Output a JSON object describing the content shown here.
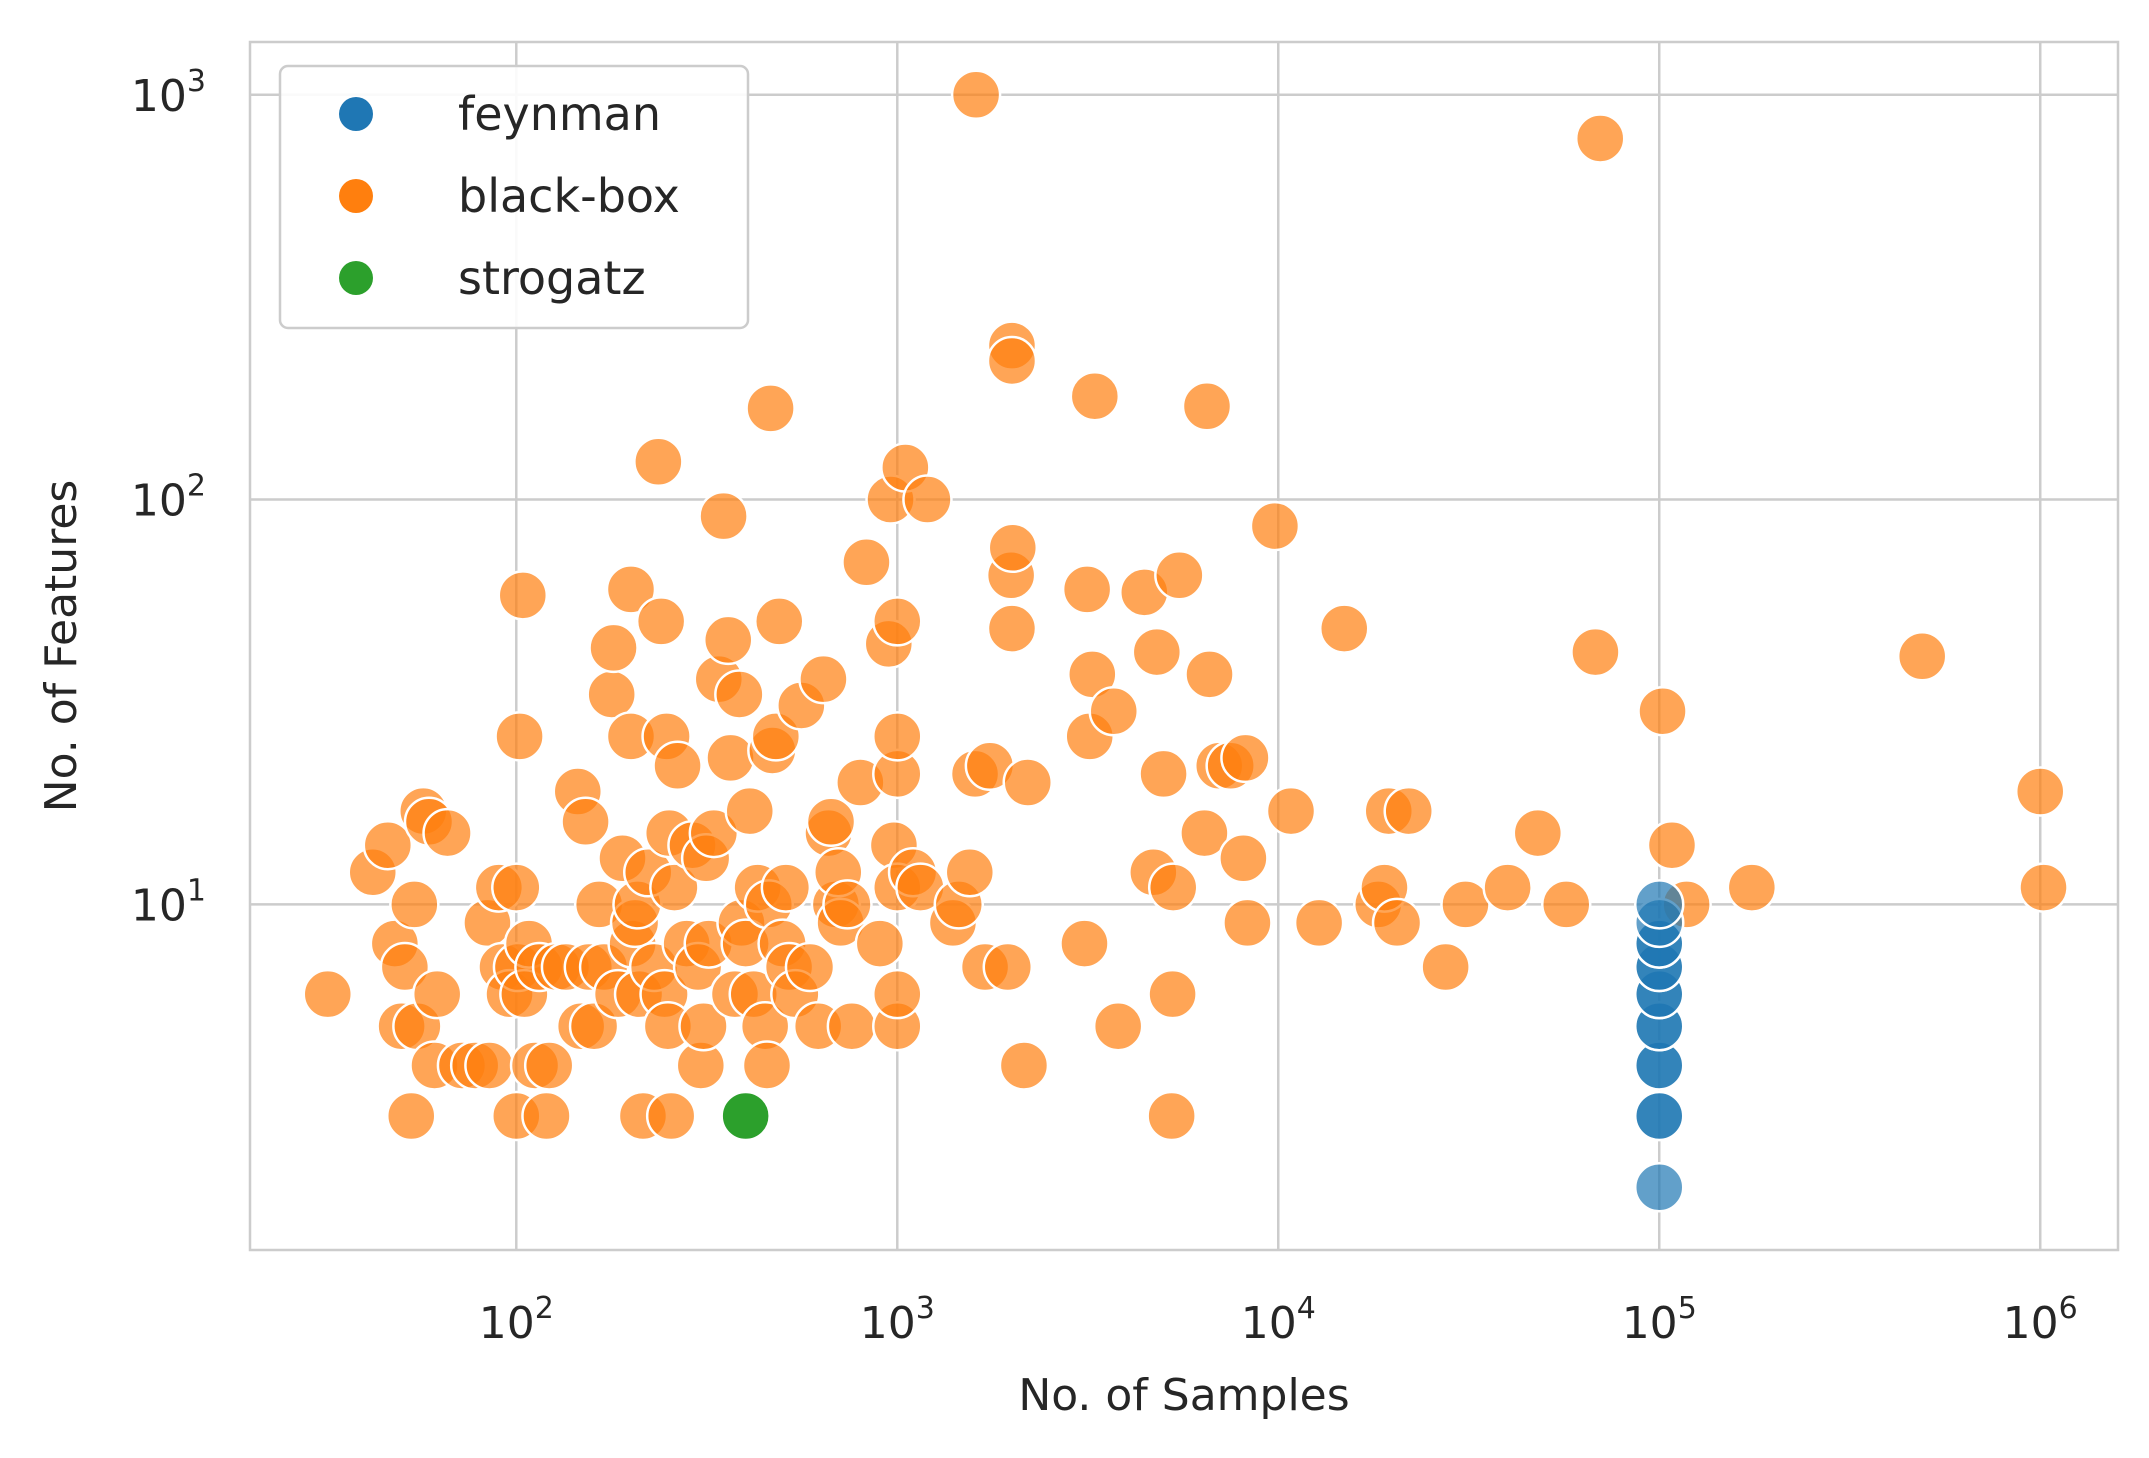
{
  "chart_data": {
    "type": "scatter",
    "xlabel": "No. of Samples",
    "ylabel": "No. of Features",
    "xscale": "log",
    "yscale": "log",
    "xlim": [
      20,
      1600000
    ],
    "ylim": [
      1.4,
      1350
    ],
    "grid": true,
    "legend": "top-left",
    "x_ticks": [
      {
        "base": "10",
        "exp": "2",
        "value": 100
      },
      {
        "base": "10",
        "exp": "3",
        "value": 1000
      },
      {
        "base": "10",
        "exp": "4",
        "value": 10000
      },
      {
        "base": "10",
        "exp": "5",
        "value": 100000
      },
      {
        "base": "10",
        "exp": "6",
        "value": 1000000
      }
    ],
    "y_ticks": [
      {
        "base": "10",
        "exp": "1",
        "value": 10
      },
      {
        "base": "10",
        "exp": "2",
        "value": 100
      },
      {
        "base": "10",
        "exp": "3",
        "value": 1000
      }
    ],
    "series": [
      {
        "name": "feynman",
        "color": "#1f77b4",
        "points": [
          [
            100000,
            2
          ],
          [
            100000,
            3
          ],
          [
            100000,
            3
          ],
          [
            100000,
            4
          ],
          [
            100000,
            4
          ],
          [
            100000,
            5
          ],
          [
            100000,
            5
          ],
          [
            100000,
            6
          ],
          [
            100000,
            6
          ],
          [
            100000,
            7
          ],
          [
            100000,
            7
          ],
          [
            100000,
            8
          ],
          [
            100000,
            8
          ],
          [
            100000,
            9
          ],
          [
            100000,
            10
          ]
        ]
      },
      {
        "name": "black-box",
        "color": "#ff7f0e",
        "points": [
          [
            32,
            6
          ],
          [
            42,
            12
          ],
          [
            46,
            14
          ],
          [
            48,
            8
          ],
          [
            50,
            5
          ],
          [
            51,
            7
          ],
          [
            53,
            3
          ],
          [
            54,
            10
          ],
          [
            55,
            5
          ],
          [
            57,
            17
          ],
          [
            59,
            16
          ],
          [
            61,
            4
          ],
          [
            62,
            6
          ],
          [
            66,
            15
          ],
          [
            72,
            4
          ],
          [
            78,
            4
          ],
          [
            84,
            9
          ],
          [
            85,
            4
          ],
          [
            90,
            11
          ],
          [
            92,
            7
          ],
          [
            96,
            6
          ],
          [
            100,
            3
          ],
          [
            100,
            11
          ],
          [
            101,
            7
          ],
          [
            102,
            26
          ],
          [
            104,
            58
          ],
          [
            105,
            6
          ],
          [
            108,
            8
          ],
          [
            112,
            4
          ],
          [
            115,
            7
          ],
          [
            120,
            3
          ],
          [
            122,
            4
          ],
          [
            128,
            7
          ],
          [
            135,
            7
          ],
          [
            145,
            19
          ],
          [
            148,
            5
          ],
          [
            152,
            16
          ],
          [
            155,
            7
          ],
          [
            160,
            5
          ],
          [
            165,
            10
          ],
          [
            170,
            7
          ],
          [
            178,
            33
          ],
          [
            180,
            43
          ],
          [
            185,
            6
          ],
          [
            190,
            13
          ],
          [
            200,
            60
          ],
          [
            200,
            26
          ],
          [
            202,
            8
          ],
          [
            205,
            9
          ],
          [
            208,
            10
          ],
          [
            210,
            6
          ],
          [
            215,
            3
          ],
          [
            222,
            12
          ],
          [
            230,
            7
          ],
          [
            236,
            124
          ],
          [
            240,
            50
          ],
          [
            245,
            6
          ],
          [
            248,
            26
          ],
          [
            250,
            5
          ],
          [
            252,
            15
          ],
          [
            255,
            3
          ],
          [
            260,
            11
          ],
          [
            265,
            22
          ],
          [
            280,
            8
          ],
          [
            290,
            14
          ],
          [
            300,
            7
          ],
          [
            305,
            4
          ],
          [
            310,
            5
          ],
          [
            315,
            13
          ],
          [
            320,
            8
          ],
          [
            330,
            15
          ],
          [
            340,
            36
          ],
          [
            350,
            91
          ],
          [
            360,
            45
          ],
          [
            365,
            23
          ],
          [
            375,
            6
          ],
          [
            385,
            33
          ],
          [
            390,
            9
          ],
          [
            400,
            8
          ],
          [
            410,
            17
          ],
          [
            420,
            6
          ],
          [
            430,
            11
          ],
          [
            450,
            5
          ],
          [
            455,
            4
          ],
          [
            460,
            10
          ],
          [
            465,
            168
          ],
          [
            470,
            24
          ],
          [
            480,
            26
          ],
          [
            490,
            50
          ],
          [
            500,
            8
          ],
          [
            510,
            11
          ],
          [
            520,
            7
          ],
          [
            540,
            6
          ],
          [
            560,
            31
          ],
          [
            590,
            7
          ],
          [
            620,
            5
          ],
          [
            640,
            36
          ],
          [
            660,
            15
          ],
          [
            670,
            16
          ],
          [
            690,
            10
          ],
          [
            700,
            12
          ],
          [
            710,
            9
          ],
          [
            740,
            10
          ],
          [
            760,
            5
          ],
          [
            800,
            20
          ],
          [
            830,
            70
          ],
          [
            900,
            8
          ],
          [
            950,
            44
          ],
          [
            960,
            100
          ],
          [
            980,
            14
          ],
          [
            1000,
            5
          ],
          [
            1000,
            6
          ],
          [
            1000,
            11
          ],
          [
            1000,
            21
          ],
          [
            1000,
            26
          ],
          [
            1000,
            50
          ],
          [
            1050,
            120
          ],
          [
            1100,
            12
          ],
          [
            1150,
            11
          ],
          [
            1200,
            100
          ],
          [
            1400,
            9
          ],
          [
            1450,
            10
          ],
          [
            1550,
            12
          ],
          [
            1600,
            21
          ],
          [
            1610,
            1000
          ],
          [
            1700,
            7
          ],
          [
            1750,
            22
          ],
          [
            1950,
            7
          ],
          [
            1990,
            65
          ],
          [
            2000,
            240
          ],
          [
            2000,
            220
          ],
          [
            2000,
            48
          ],
          [
            2010,
            76
          ],
          [
            2150,
            4
          ],
          [
            2200,
            20
          ],
          [
            3100,
            8
          ],
          [
            3150,
            60
          ],
          [
            3200,
            26
          ],
          [
            3250,
            37
          ],
          [
            3300,
            180
          ],
          [
            3700,
            30
          ],
          [
            3800,
            5
          ],
          [
            4450,
            59
          ],
          [
            4700,
            12
          ],
          [
            4800,
            42
          ],
          [
            5000,
            21
          ],
          [
            5250,
            3
          ],
          [
            5280,
            6
          ],
          [
            5300,
            11
          ],
          [
            5500,
            65
          ],
          [
            6400,
            15
          ],
          [
            6500,
            170
          ],
          [
            6600,
            37
          ],
          [
            7000,
            22
          ],
          [
            7500,
            22
          ],
          [
            8100,
            13
          ],
          [
            8200,
            23
          ],
          [
            8300,
            9
          ],
          [
            9800,
            86
          ],
          [
            10800,
            17
          ],
          [
            12800,
            9
          ],
          [
            14900,
            48
          ],
          [
            18300,
            10
          ],
          [
            19000,
            11
          ],
          [
            19500,
            17
          ],
          [
            20500,
            9
          ],
          [
            22000,
            17
          ],
          [
            27500,
            7
          ],
          [
            31000,
            10
          ],
          [
            40000,
            11
          ],
          [
            48000,
            15
          ],
          [
            57000,
            10
          ],
          [
            68000,
            42
          ],
          [
            70000,
            780
          ],
          [
            102000,
            30
          ],
          [
            108000,
            14
          ],
          [
            118000,
            10
          ],
          [
            175000,
            11
          ],
          [
            490000,
            41
          ],
          [
            1000000,
            19
          ],
          [
            1020000,
            11
          ]
        ]
      },
      {
        "name": "strogatz",
        "color": "#2ca02c",
        "points": [
          [
            400,
            3
          ]
        ]
      }
    ]
  }
}
